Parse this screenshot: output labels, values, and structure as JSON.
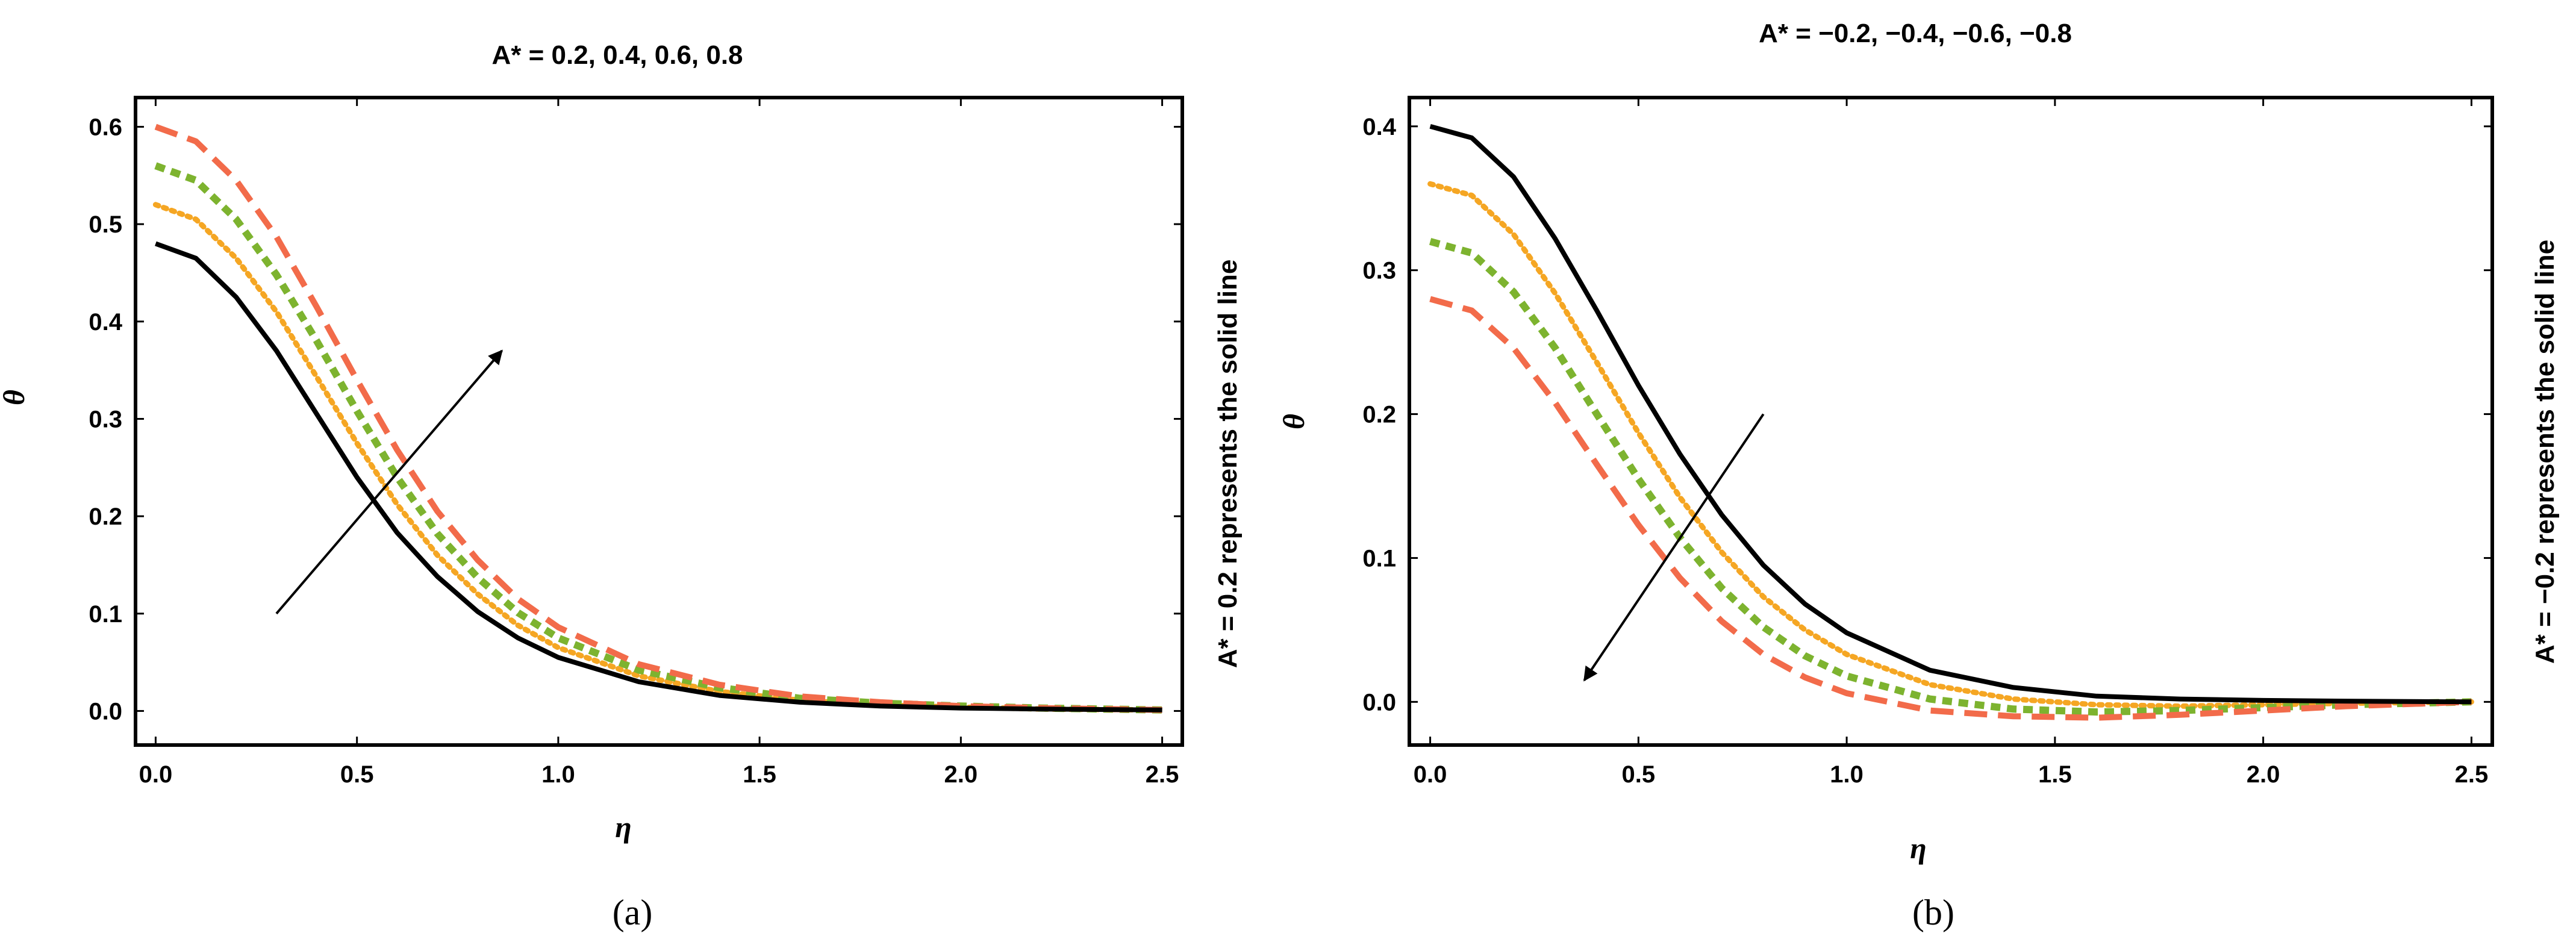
{
  "chart_data": [
    {
      "type": "line",
      "panel": "a",
      "title": "A* = 0.2, 0.4, 0.6, 0.8",
      "side_note": "A* = 0.2 represents the solid line",
      "caption": "(a)",
      "xlabel": "η",
      "ylabel": "θ",
      "xlim": [
        -0.05,
        2.55
      ],
      "ylim": [
        -0.035,
        0.63
      ],
      "xticks": [
        "0.0",
        "0.5",
        "1.0",
        "1.5",
        "2.0",
        "2.5"
      ],
      "yticks": [
        "0.0",
        "0.1",
        "0.2",
        "0.3",
        "0.4",
        "0.5",
        "0.6"
      ],
      "arrow": {
        "from": [
          0.3,
          0.1
        ],
        "to": [
          0.86,
          0.37
        ],
        "meaning": "increasing A*"
      },
      "x": [
        0,
        0.1,
        0.2,
        0.3,
        0.4,
        0.5,
        0.6,
        0.7,
        0.8,
        0.9,
        1.0,
        1.2,
        1.4,
        1.6,
        1.8,
        2.0,
        2.2,
        2.5
      ],
      "series": [
        {
          "name": "A* = 0.2",
          "style": "solid",
          "color": "#000000",
          "values": [
            0.48,
            0.465,
            0.425,
            0.37,
            0.305,
            0.24,
            0.183,
            0.138,
            0.102,
            0.075,
            0.055,
            0.03,
            0.016,
            0.009,
            0.005,
            0.003,
            0.002,
            0.001
          ]
        },
        {
          "name": "A* = 0.4",
          "style": "dotted",
          "color": "#F5A623",
          "values": [
            0.52,
            0.505,
            0.465,
            0.41,
            0.343,
            0.275,
            0.212,
            0.16,
            0.12,
            0.088,
            0.065,
            0.036,
            0.02,
            0.011,
            0.006,
            0.004,
            0.002,
            0.001
          ]
        },
        {
          "name": "A* = 0.6",
          "style": "short-dash",
          "color": "#7DB32F",
          "values": [
            0.56,
            0.545,
            0.505,
            0.448,
            0.38,
            0.308,
            0.24,
            0.182,
            0.137,
            0.101,
            0.075,
            0.042,
            0.024,
            0.013,
            0.008,
            0.005,
            0.003,
            0.001
          ]
        },
        {
          "name": "A* = 0.8",
          "style": "long-dash",
          "color": "#F26B4A",
          "values": [
            0.6,
            0.585,
            0.545,
            0.487,
            0.415,
            0.34,
            0.268,
            0.205,
            0.155,
            0.115,
            0.086,
            0.048,
            0.027,
            0.015,
            0.009,
            0.005,
            0.003,
            0.001
          ]
        }
      ]
    },
    {
      "type": "line",
      "panel": "b",
      "title": "A* = −0.2, −0.4, −0.6, −0.8",
      "side_note": "A* = −0.2 represents the solid line",
      "caption": "(b)",
      "xlabel": "η",
      "ylabel": "θ",
      "xlim": [
        -0.05,
        2.55
      ],
      "ylim": [
        -0.03,
        0.42
      ],
      "xticks": [
        "0.0",
        "0.5",
        "1.0",
        "1.5",
        "2.0",
        "2.5"
      ],
      "yticks": [
        "0.0",
        "0.1",
        "0.2",
        "0.3",
        "0.4"
      ],
      "arrow": {
        "from": [
          0.8,
          0.2
        ],
        "to": [
          0.37,
          0.015
        ],
        "meaning": "decreasing A*"
      },
      "x": [
        0,
        0.1,
        0.2,
        0.3,
        0.4,
        0.5,
        0.6,
        0.7,
        0.8,
        0.9,
        1.0,
        1.2,
        1.4,
        1.6,
        1.8,
        2.0,
        2.2,
        2.5
      ],
      "series": [
        {
          "name": "A* = −0.2",
          "style": "solid",
          "color": "#000000",
          "values": [
            0.4,
            0.392,
            0.365,
            0.322,
            0.272,
            0.22,
            0.172,
            0.13,
            0.095,
            0.068,
            0.048,
            0.022,
            0.01,
            0.004,
            0.002,
            0.001,
            0.0005,
            0
          ]
        },
        {
          "name": "A* = −0.4",
          "style": "dotted",
          "color": "#F5A623",
          "values": [
            0.36,
            0.352,
            0.325,
            0.284,
            0.236,
            0.187,
            0.142,
            0.104,
            0.073,
            0.05,
            0.033,
            0.012,
            0.002,
            -0.002,
            -0.003,
            -0.002,
            -0.001,
            0
          ]
        },
        {
          "name": "A* = −0.6",
          "style": "short-dash",
          "color": "#7DB32F",
          "values": [
            0.32,
            0.312,
            0.285,
            0.246,
            0.2,
            0.155,
            0.114,
            0.079,
            0.052,
            0.032,
            0.018,
            0.002,
            -0.005,
            -0.007,
            -0.006,
            -0.004,
            -0.002,
            0
          ]
        },
        {
          "name": "A* = −0.8",
          "style": "long-dash",
          "color": "#F26B4A",
          "values": [
            0.28,
            0.272,
            0.246,
            0.208,
            0.165,
            0.123,
            0.086,
            0.056,
            0.033,
            0.017,
            0.006,
            -0.006,
            -0.01,
            -0.011,
            -0.009,
            -0.006,
            -0.003,
            0
          ]
        }
      ]
    }
  ]
}
